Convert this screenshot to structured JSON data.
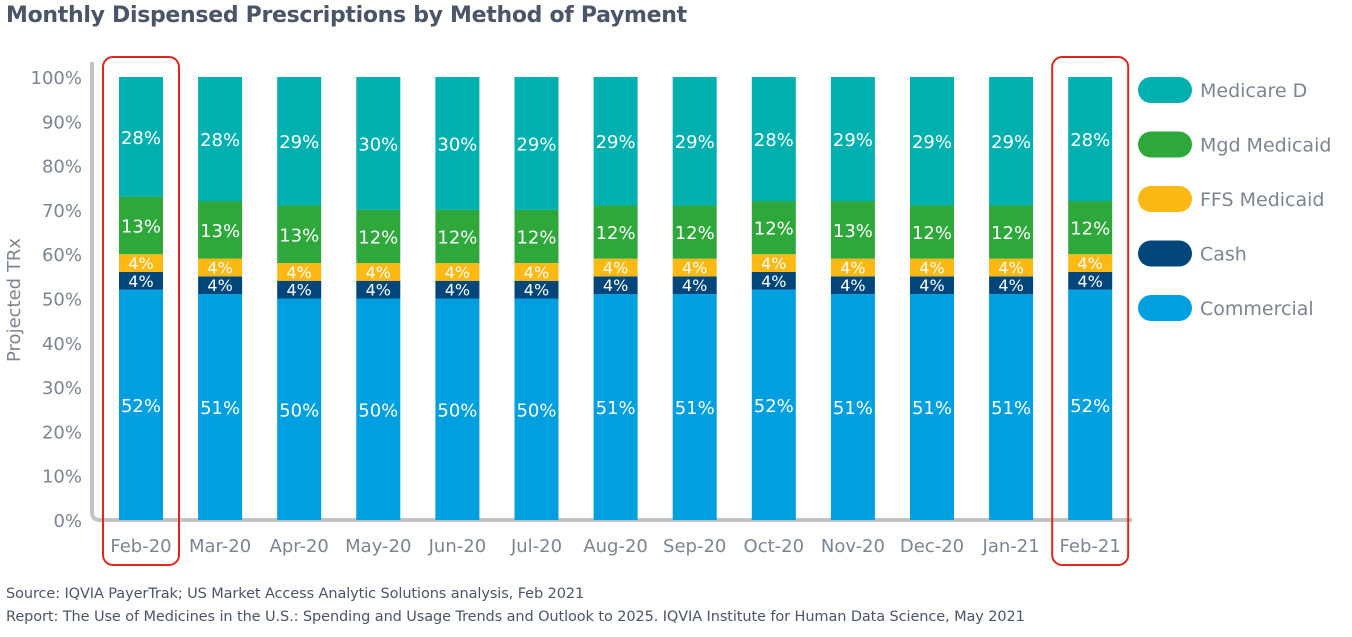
{
  "header": {
    "title": "Monthly Dispensed Prescriptions by Method of Payment"
  },
  "footer": {
    "source": "Source: IQVIA PayerTrak; US Market Access Analytic Solutions analysis, Feb 2021",
    "report": "Report: The Use of Medicines in the U.S.: Spending and Usage Trends and Outlook to 2025. IQVIA Institute for Human Data Science, May 2021"
  },
  "chart_data": {
    "type": "bar",
    "stacked": true,
    "title": "Monthly Dispensed Prescriptions by Method of Payment",
    "xlabel": "",
    "ylabel": "Projected TRx",
    "ylim": [
      0,
      100
    ],
    "yticks": [
      "0%",
      "10%",
      "20%",
      "30%",
      "40%",
      "50%",
      "60%",
      "70%",
      "80%",
      "90%",
      "100%"
    ],
    "grid": false,
    "legend_position": "right",
    "categories": [
      "Feb-20",
      "Mar-20",
      "Apr-20",
      "May-20",
      "Jun-20",
      "Jul-20",
      "Aug-20",
      "Sep-20",
      "Oct-20",
      "Nov-20",
      "Dec-20",
      "Jan-21",
      "Feb-21"
    ],
    "highlighted_categories": [
      "Feb-20",
      "Feb-21"
    ],
    "highlight_color": "#e0251b",
    "series": [
      {
        "name": "Commercial",
        "color": "#009fdf",
        "values": [
          52,
          51,
          50,
          50,
          50,
          50,
          51,
          51,
          52,
          51,
          51,
          51,
          52
        ]
      },
      {
        "name": "Cash",
        "color": "#00467a",
        "values": [
          4,
          4,
          4,
          4,
          4,
          4,
          4,
          4,
          4,
          4,
          4,
          4,
          4
        ]
      },
      {
        "name": "FFS Medicaid",
        "color": "#fdb913",
        "values": [
          4,
          4,
          4,
          4,
          4,
          4,
          4,
          4,
          4,
          4,
          4,
          4,
          4
        ]
      },
      {
        "name": "Mgd Medicaid",
        "color": "#2ea83a",
        "values": [
          13,
          13,
          13,
          12,
          12,
          12,
          12,
          12,
          12,
          13,
          12,
          12,
          12
        ]
      },
      {
        "name": "Medicare D",
        "color": "#00b0ae",
        "values": [
          28,
          28,
          29,
          30,
          30,
          29,
          29,
          29,
          28,
          29,
          29,
          29,
          28
        ]
      }
    ],
    "legend_order": [
      "Medicare D",
      "Mgd Medicaid",
      "FFS Medicaid",
      "Cash",
      "Commercial"
    ]
  }
}
